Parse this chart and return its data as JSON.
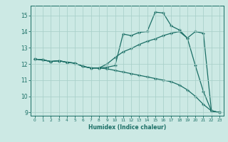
{
  "xlabel": "Humidex (Indice chaleur)",
  "bg_color": "#cce9e4",
  "grid_color_major": "#b0d4ce",
  "line_color": "#1a6e65",
  "xlim": [
    -0.5,
    23.5
  ],
  "ylim": [
    8.8,
    15.6
  ],
  "yticks": [
    9,
    10,
    11,
    12,
    13,
    14,
    15
  ],
  "xticks": [
    0,
    1,
    2,
    3,
    4,
    5,
    6,
    7,
    8,
    9,
    10,
    11,
    12,
    13,
    14,
    15,
    16,
    17,
    18,
    19,
    20,
    21,
    22,
    23
  ],
  "series1_x": [
    0,
    1,
    2,
    3,
    4,
    5,
    6,
    7,
    8,
    9,
    10,
    11,
    12,
    13,
    14,
    15,
    16,
    17,
    18,
    19,
    20,
    21,
    22,
    23
  ],
  "series1_y": [
    12.3,
    12.25,
    12.15,
    12.2,
    12.1,
    12.05,
    11.85,
    11.75,
    11.75,
    11.8,
    11.9,
    13.85,
    13.75,
    13.95,
    14.0,
    15.2,
    15.15,
    14.35,
    14.1,
    13.6,
    11.9,
    10.3,
    9.1,
    9.0
  ],
  "series2_x": [
    0,
    1,
    2,
    3,
    4,
    5,
    6,
    7,
    8,
    9,
    10,
    11,
    12,
    13,
    14,
    15,
    16,
    17,
    18,
    19,
    20,
    21,
    22,
    23
  ],
  "series2_y": [
    12.3,
    12.25,
    12.15,
    12.2,
    12.1,
    12.05,
    11.85,
    11.75,
    11.75,
    12.0,
    12.4,
    12.75,
    12.95,
    13.2,
    13.4,
    13.55,
    13.75,
    13.9,
    14.0,
    13.6,
    14.0,
    13.9,
    9.1,
    9.0
  ],
  "series3_x": [
    0,
    1,
    2,
    3,
    4,
    5,
    6,
    7,
    8,
    9,
    10,
    11,
    12,
    13,
    14,
    15,
    16,
    17,
    18,
    19,
    20,
    21,
    22,
    23
  ],
  "series3_y": [
    12.3,
    12.25,
    12.15,
    12.2,
    12.1,
    12.05,
    11.85,
    11.75,
    11.75,
    11.7,
    11.6,
    11.5,
    11.4,
    11.3,
    11.2,
    11.1,
    11.0,
    10.9,
    10.7,
    10.4,
    10.0,
    9.5,
    9.1,
    9.0
  ]
}
